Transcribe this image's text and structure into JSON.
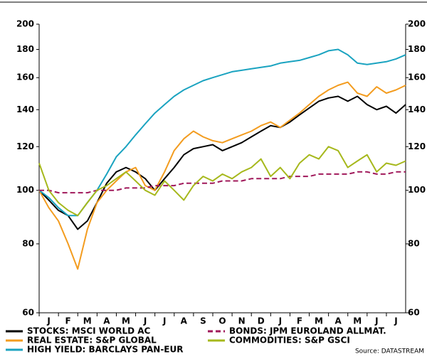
{
  "chart_data": {
    "type": "line",
    "log_scale": true,
    "x": [
      0,
      0.5,
      1,
      1.5,
      2,
      2.5,
      3,
      3.5,
      4,
      4.5,
      5,
      5.5,
      6,
      6.5,
      7,
      7.5,
      8,
      8.5,
      9,
      9.5,
      10,
      10.5,
      11,
      11.5,
      12,
      12.5,
      13,
      13.5,
      14,
      14.5,
      15,
      15.5,
      16,
      16.5,
      17,
      17.5,
      18,
      18.5,
      19
    ],
    "xlim": [
      0,
      19
    ],
    "xticks": [
      {
        "value": 0.5,
        "label": "J"
      },
      {
        "value": 1.5,
        "label": "F"
      },
      {
        "value": 2.5,
        "label": "M"
      },
      {
        "value": 3.5,
        "label": "A"
      },
      {
        "value": 4.5,
        "label": "M"
      },
      {
        "value": 5.5,
        "label": "J"
      },
      {
        "value": 6.5,
        "label": "J"
      },
      {
        "value": 7.5,
        "label": "A"
      },
      {
        "value": 8.5,
        "label": "S"
      },
      {
        "value": 9.5,
        "label": "O"
      },
      {
        "value": 10.5,
        "label": "N"
      },
      {
        "value": 11.5,
        "label": "D"
      },
      {
        "value": 12.5,
        "label": "J"
      },
      {
        "value": 13.5,
        "label": "F"
      },
      {
        "value": 14.5,
        "label": "M"
      },
      {
        "value": 15.5,
        "label": "A"
      },
      {
        "value": 16.5,
        "label": "M"
      },
      {
        "value": 17.5,
        "label": "J"
      },
      {
        "value": 18.5,
        "label": "J"
      }
    ],
    "ylim": [
      60,
      200
    ],
    "yticks": [
      60,
      80,
      100,
      120,
      140,
      160,
      180,
      200
    ],
    "series": [
      {
        "name": "STOCKS: MSCI WORLD AC",
        "color": "#000000",
        "values": [
          100,
          96,
          92,
          90,
          85,
          88,
          95,
          103,
          108,
          110,
          108,
          105,
          100,
          105,
          110,
          116,
          119,
          120,
          121,
          118,
          120,
          122,
          125,
          128,
          131,
          130,
          133,
          137,
          141,
          145,
          147,
          148,
          145,
          148,
          143,
          140,
          142,
          138,
          143
        ]
      },
      {
        "name": "REAL ESTATE: S&P GLOBAL",
        "color": "#f39c1f",
        "values": [
          100,
          93,
          88,
          80,
          72,
          85,
          95,
          100,
          104,
          108,
          110,
          102,
          100,
          108,
          118,
          124,
          128,
          125,
          123,
          122,
          124,
          126,
          128,
          131,
          133,
          130,
          134,
          138,
          143,
          148,
          152,
          155,
          157,
          150,
          148,
          154,
          150,
          152,
          155
        ]
      },
      {
        "name": "HIGH YIELD: BARCLAYS PAN-EUR",
        "color": "#1aa3c0",
        "values": [
          100,
          97,
          93,
          90,
          90,
          95,
          100,
          107,
          115,
          120,
          126,
          132,
          138,
          143,
          148,
          152,
          155,
          158,
          160,
          162,
          164,
          165,
          166,
          167,
          168,
          170,
          171,
          172,
          174,
          176,
          179,
          180,
          176,
          170,
          169,
          170,
          171,
          173,
          176
        ]
      },
      {
        "name": "BONDS: JPM EUROLAND ALLMAT.",
        "color": "#a0185a",
        "dashed": true,
        "values": [
          100,
          100,
          99,
          99,
          99,
          99,
          100,
          100,
          100,
          101,
          101,
          101,
          102,
          102,
          102,
          103,
          103,
          103,
          103,
          104,
          104,
          104,
          105,
          105,
          105,
          105,
          106,
          106,
          106,
          107,
          107,
          107,
          107,
          108,
          108,
          107,
          107,
          108,
          108
        ]
      },
      {
        "name": "COMMODITIES: S&P GSCI",
        "color": "#a6b81c",
        "values": [
          112,
          100,
          95,
          92,
          90,
          95,
          100,
          102,
          105,
          108,
          104,
          100,
          98,
          104,
          100,
          96,
          102,
          106,
          104,
          107,
          105,
          108,
          110,
          114,
          106,
          110,
          105,
          112,
          116,
          114,
          120,
          118,
          110,
          113,
          116,
          108,
          112,
          111,
          113
        ]
      }
    ],
    "source": "Source: DATASTREAM"
  }
}
